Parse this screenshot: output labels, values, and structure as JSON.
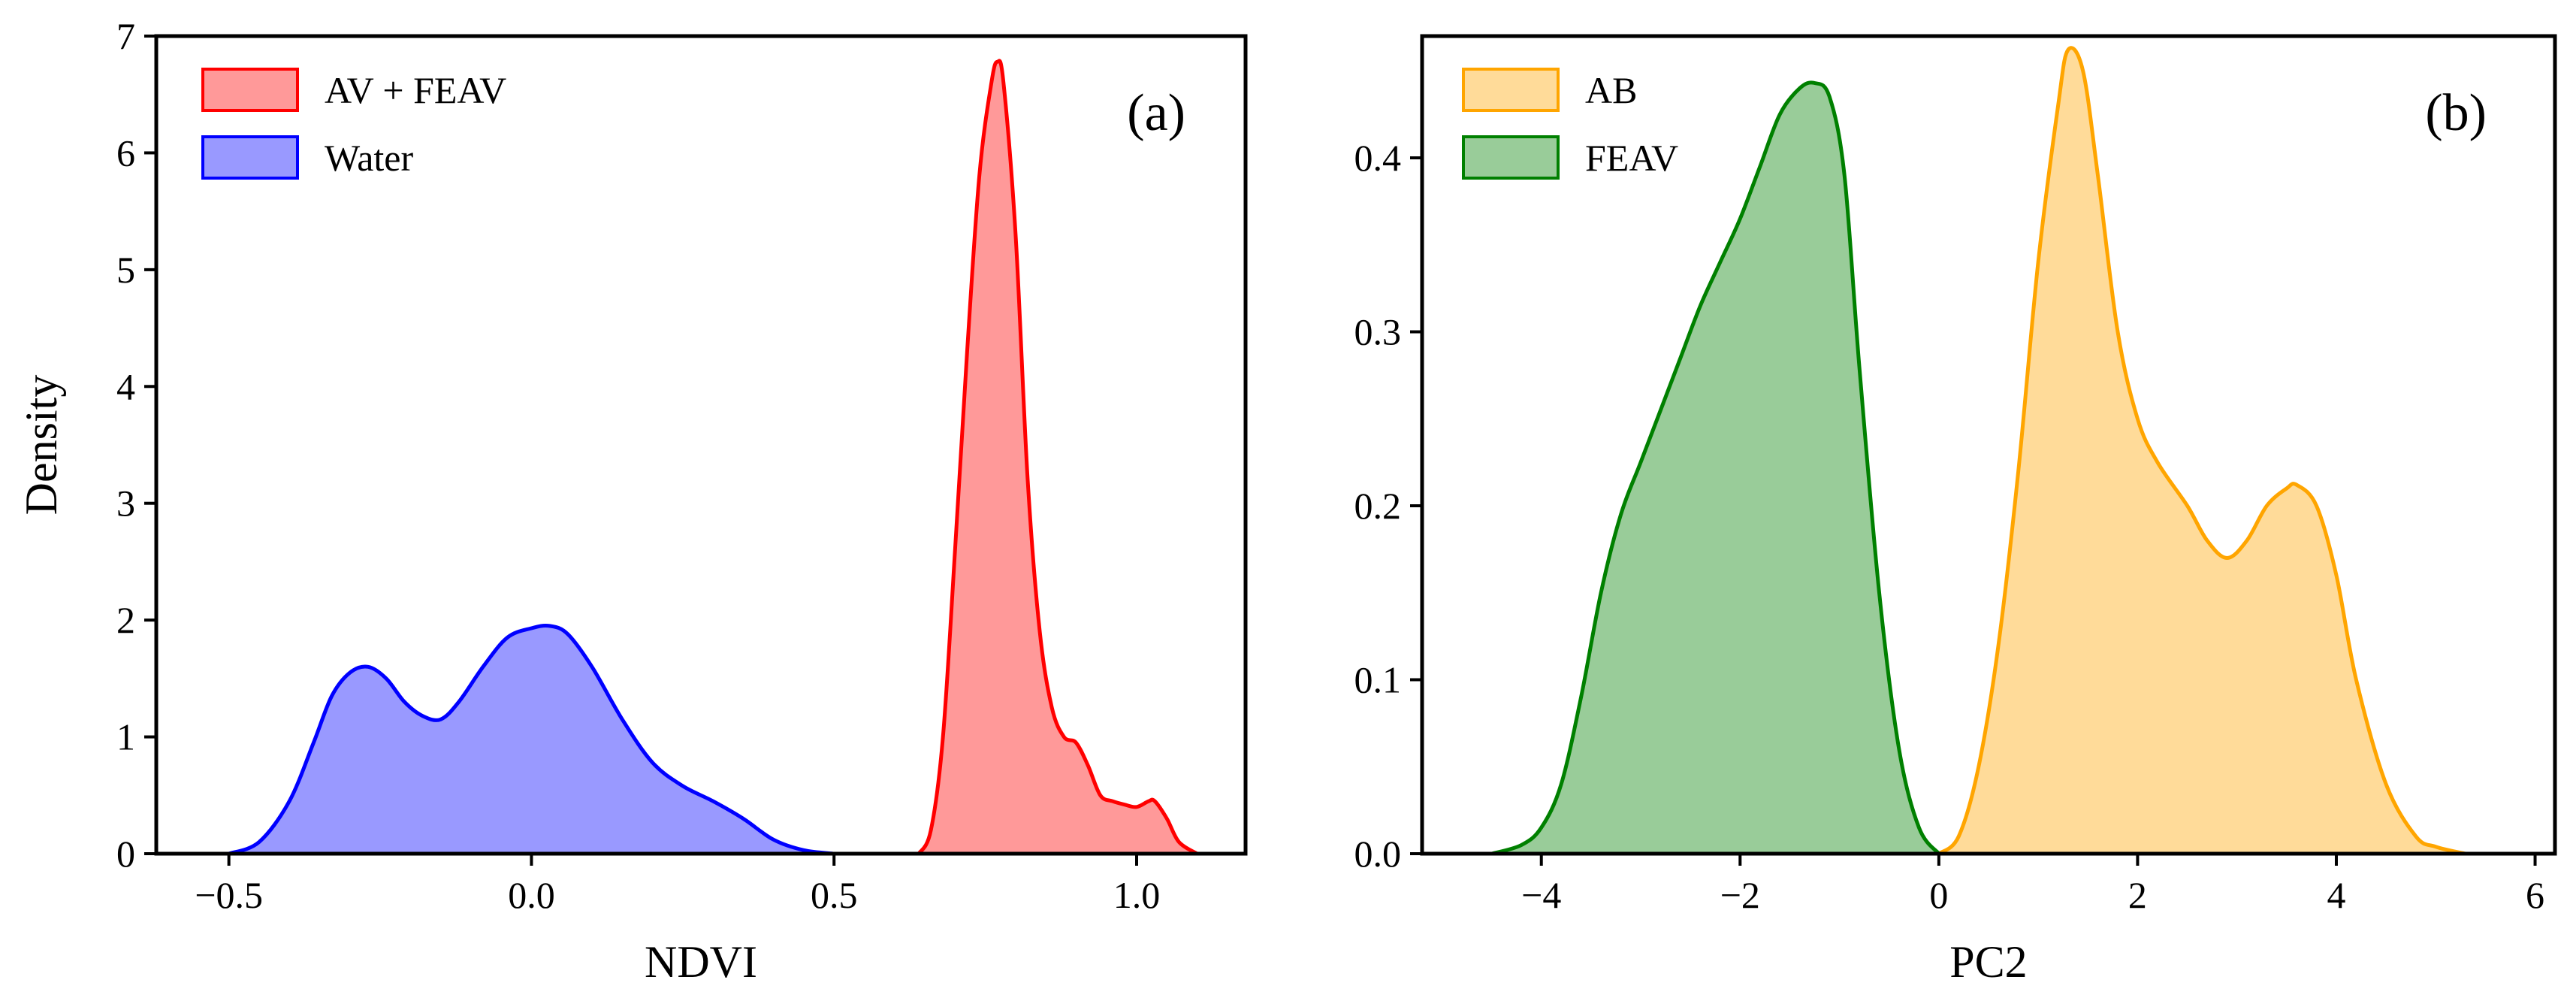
{
  "chart_data": [
    {
      "type": "area",
      "panel_label": "(a)",
      "xlabel": "NDVI",
      "ylabel": "Density",
      "xlim": [
        -0.62,
        1.18
      ],
      "ylim": [
        0,
        7
      ],
      "xticks": [
        -0.5,
        0.0,
        0.5,
        1.0
      ],
      "xtick_labels": [
        "−0.5",
        "0.0",
        "0.5",
        "1.0"
      ],
      "yticks": [
        0,
        1,
        2,
        3,
        4,
        5,
        6,
        7
      ],
      "ytick_labels": [
        "0",
        "1",
        "2",
        "3",
        "4",
        "5",
        "6",
        "7"
      ],
      "legend_position": "top-left",
      "series": [
        {
          "name": "AV + FEAV",
          "color": "#ff0000",
          "fill": "#ff9999",
          "x": [
            0.64,
            0.66,
            0.68,
            0.7,
            0.72,
            0.74,
            0.76,
            0.77,
            0.78,
            0.8,
            0.82,
            0.84,
            0.86,
            0.88,
            0.9,
            0.92,
            0.94,
            0.96,
            0.98,
            1.0,
            1.02,
            1.03,
            1.05,
            1.07,
            1.1
          ],
          "y": [
            0.0,
            0.2,
            1.0,
            2.6,
            4.3,
            5.8,
            6.6,
            6.78,
            6.6,
            5.3,
            3.2,
            1.9,
            1.25,
            1.0,
            0.95,
            0.75,
            0.5,
            0.45,
            0.42,
            0.4,
            0.45,
            0.45,
            0.3,
            0.1,
            0.0
          ]
        },
        {
          "name": "Water",
          "color": "#0000ff",
          "fill": "#9999ff",
          "x": [
            -0.5,
            -0.45,
            -0.4,
            -0.36,
            -0.33,
            -0.3,
            -0.27,
            -0.24,
            -0.21,
            -0.18,
            -0.15,
            -0.12,
            -0.08,
            -0.04,
            0.0,
            0.03,
            0.06,
            0.1,
            0.15,
            0.2,
            0.25,
            0.3,
            0.35,
            0.4,
            0.45,
            0.5
          ],
          "y": [
            0.0,
            0.1,
            0.45,
            0.95,
            1.35,
            1.55,
            1.6,
            1.5,
            1.3,
            1.18,
            1.15,
            1.3,
            1.6,
            1.85,
            1.93,
            1.95,
            1.88,
            1.6,
            1.15,
            0.78,
            0.58,
            0.45,
            0.3,
            0.12,
            0.03,
            0.0
          ]
        }
      ]
    },
    {
      "type": "area",
      "panel_label": "(b)",
      "xlabel": "PC2",
      "ylabel": "",
      "xlim": [
        -5.2,
        6.2
      ],
      "ylim": [
        0,
        0.47
      ],
      "xticks": [
        -4,
        -2,
        0,
        2,
        4,
        6
      ],
      "xtick_labels": [
        "−4",
        "−2",
        "0",
        "2",
        "4",
        "6"
      ],
      "yticks": [
        0.0,
        0.1,
        0.2,
        0.3,
        0.4
      ],
      "ytick_labels": [
        "0.0",
        "0.1",
        "0.2",
        "0.3",
        "0.4"
      ],
      "legend_position": "top-left",
      "series": [
        {
          "name": "AB",
          "color": "#ffa500",
          "fill": "#ffdb99",
          "x": [
            0.0,
            0.2,
            0.4,
            0.6,
            0.8,
            1.0,
            1.2,
            1.3,
            1.45,
            1.6,
            1.8,
            2.0,
            2.2,
            2.5,
            2.7,
            2.9,
            3.1,
            3.3,
            3.5,
            3.6,
            3.8,
            4.0,
            4.2,
            4.5,
            4.8,
            5.0,
            5.3
          ],
          "y": [
            0.0,
            0.01,
            0.05,
            0.12,
            0.22,
            0.34,
            0.43,
            0.462,
            0.45,
            0.39,
            0.3,
            0.25,
            0.225,
            0.2,
            0.18,
            0.17,
            0.18,
            0.2,
            0.21,
            0.212,
            0.2,
            0.16,
            0.1,
            0.04,
            0.01,
            0.004,
            0.0
          ]
        },
        {
          "name": "FEAV",
          "color": "#008000",
          "fill": "#99cc99",
          "x": [
            -4.5,
            -4.2,
            -4.0,
            -3.8,
            -3.6,
            -3.4,
            -3.2,
            -3.0,
            -2.8,
            -2.6,
            -2.4,
            -2.2,
            -2.0,
            -1.8,
            -1.6,
            -1.4,
            -1.25,
            -1.1,
            -0.95,
            -0.8,
            -0.6,
            -0.4,
            -0.2,
            0.0
          ],
          "y": [
            0.0,
            0.005,
            0.015,
            0.04,
            0.09,
            0.15,
            0.195,
            0.225,
            0.255,
            0.285,
            0.315,
            0.34,
            0.365,
            0.395,
            0.425,
            0.44,
            0.443,
            0.435,
            0.39,
            0.28,
            0.15,
            0.06,
            0.015,
            0.0
          ]
        }
      ]
    }
  ]
}
